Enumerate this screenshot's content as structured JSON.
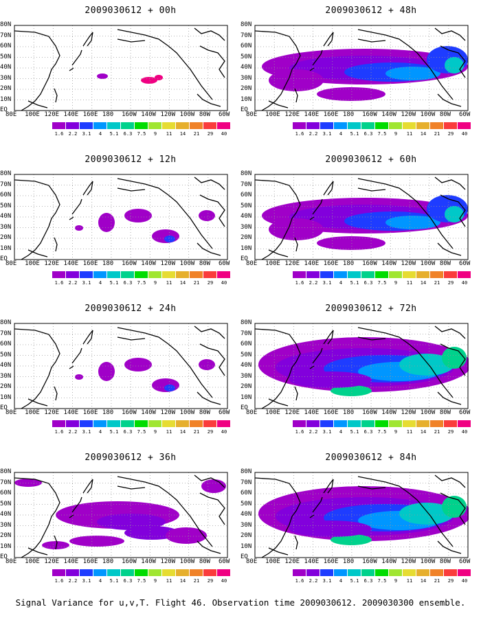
{
  "panels": [
    {
      "title": "2009030612 + 00h",
      "level": 0
    },
    {
      "title": "2009030612 + 48h",
      "level": 3
    },
    {
      "title": "2009030612 + 12h",
      "level": 1
    },
    {
      "title": "2009030612 + 60h",
      "level": 3
    },
    {
      "title": "2009030612 + 24h",
      "level": 1
    },
    {
      "title": "2009030612 + 72h",
      "level": 4
    },
    {
      "title": "2009030612 + 36h",
      "level": 2
    },
    {
      "title": "2009030612 + 84h",
      "level": 4
    }
  ],
  "lat_labels": [
    "80N",
    "70N",
    "60N",
    "50N",
    "40N",
    "30N",
    "20N",
    "10N",
    "EQ"
  ],
  "lon_labels": [
    "80E",
    "100E",
    "120E",
    "140E",
    "160E",
    "180",
    "160W",
    "140W",
    "120W",
    "100W",
    "80W",
    "60W"
  ],
  "colorbar": {
    "levels": [
      "1.6",
      "2.2",
      "3.1",
      "4",
      "5.1",
      "6.3",
      "7.5",
      "9",
      "11",
      "14",
      "21",
      "29",
      "40"
    ],
    "colors": [
      "#a000c8",
      "#8200dc",
      "#1e3cff",
      "#0096ff",
      "#00c8c8",
      "#00d28c",
      "#00dc00",
      "#a0e632",
      "#e6dc32",
      "#e6af2d",
      "#f08228",
      "#fa3c3c",
      "#f00082"
    ]
  },
  "caption": "Signal Variance for u,v,T. Flight 46. Observation time 2009030612. 2009030300 ensemble."
}
